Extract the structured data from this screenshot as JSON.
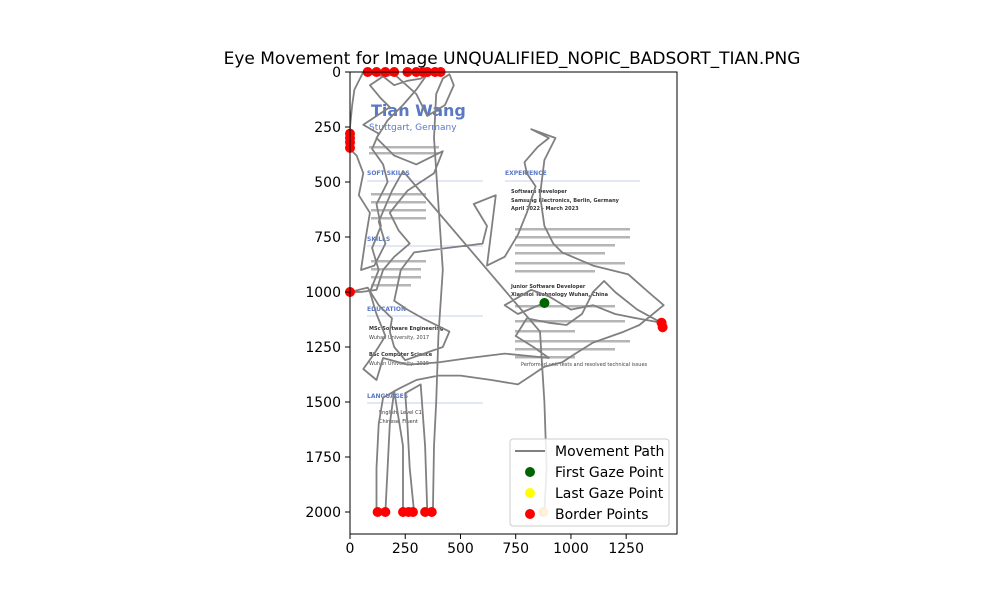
{
  "chart_data": {
    "type": "scatter",
    "title": "Eye Movement for Image UNQUALIFIED_NOPIC_BADSORT_TIAN.PNG",
    "xlabel": "",
    "ylabel": "",
    "xlim": [
      0,
      1480
    ],
    "ylim": [
      2100,
      0
    ],
    "y_inverted": true,
    "x_ticks": [
      0,
      250,
      500,
      750,
      1000,
      1250
    ],
    "y_ticks": [
      0,
      250,
      500,
      750,
      1000,
      1250,
      1500,
      1750,
      2000
    ],
    "grid": false,
    "legend_position": "lower-right",
    "legend": [
      "Movement Path",
      "First Gaze Point",
      "Last Gaze Point",
      "Border Points"
    ],
    "colors": {
      "path": "#808080",
      "first_gaze": "#006400",
      "last_gaze": "#ffff00",
      "border": "#ff0000",
      "resume_accent": "#5a78c8"
    },
    "series": [
      {
        "name": "Movement Path",
        "kind": "line",
        "points": [
          [
            880,
            1050
          ],
          [
            760,
            1100
          ],
          [
            700,
            1060
          ],
          [
            820,
            990
          ],
          [
            900,
            1020
          ],
          [
            1000,
            1080
          ],
          [
            1100,
            1060
          ],
          [
            1200,
            1100
          ],
          [
            1300,
            1120
          ],
          [
            1410,
            1140
          ],
          [
            1300,
            1080
          ],
          [
            1200,
            1000
          ],
          [
            1150,
            950
          ],
          [
            1100,
            1000
          ],
          [
            1050,
            1100
          ],
          [
            980,
            1150
          ],
          [
            900,
            1140
          ],
          [
            800,
            1120
          ],
          [
            750,
            1200
          ],
          [
            830,
            1250
          ],
          [
            900,
            1300
          ],
          [
            700,
            1280
          ],
          [
            540,
            1300
          ],
          [
            400,
            1320
          ],
          [
            260,
            1330
          ],
          [
            150,
            1300
          ],
          [
            120,
            1400
          ],
          [
            60,
            1350
          ],
          [
            110,
            1280
          ],
          [
            160,
            1200
          ],
          [
            120,
            1100
          ],
          [
            90,
            1000
          ],
          [
            130,
            900
          ],
          [
            100,
            800
          ],
          [
            140,
            700
          ],
          [
            120,
            600
          ],
          [
            170,
            500
          ],
          [
            150,
            420
          ],
          [
            100,
            350
          ],
          [
            130,
            280
          ],
          [
            60,
            240
          ],
          [
            120,
            200
          ],
          [
            180,
            160
          ],
          [
            140,
            120
          ],
          [
            90,
            60
          ],
          [
            150,
            20
          ],
          [
            200,
            60
          ],
          [
            260,
            40
          ],
          [
            320,
            30
          ],
          [
            350,
            10
          ],
          [
            300,
            80
          ],
          [
            240,
            150
          ],
          [
            170,
            220
          ],
          [
            120,
            300
          ],
          [
            200,
            380
          ],
          [
            300,
            420
          ],
          [
            420,
            360
          ],
          [
            380,
            460
          ],
          [
            260,
            540
          ],
          [
            180,
            640
          ],
          [
            220,
            720
          ],
          [
            270,
            780
          ],
          [
            200,
            840
          ],
          [
            150,
            900
          ],
          [
            120,
            990
          ],
          [
            50,
            1000
          ],
          [
            0,
            1000
          ],
          [
            80,
            980
          ],
          [
            130,
            1060
          ],
          [
            190,
            1120
          ],
          [
            180,
            1180
          ],
          [
            200,
            1250
          ],
          [
            250,
            1310
          ],
          [
            420,
            1250
          ],
          [
            450,
            1180
          ],
          [
            330,
            1120
          ],
          [
            260,
            1080
          ],
          [
            200,
            1040
          ],
          [
            230,
            900
          ],
          [
            290,
            820
          ],
          [
            440,
            800
          ],
          [
            600,
            780
          ],
          [
            620,
            700
          ],
          [
            560,
            600
          ],
          [
            660,
            560
          ],
          [
            620,
            880
          ],
          [
            700,
            840
          ],
          [
            760,
            740
          ],
          [
            800,
            640
          ],
          [
            840,
            520
          ],
          [
            800,
            460
          ],
          [
            790,
            410
          ],
          [
            850,
            340
          ],
          [
            900,
            300
          ],
          [
            820,
            260
          ],
          [
            930,
            300
          ],
          [
            880,
            400
          ],
          [
            860,
            560
          ],
          [
            880,
            700
          ],
          [
            920,
            780
          ],
          [
            960,
            820
          ],
          [
            1100,
            880
          ],
          [
            1260,
            920
          ],
          [
            1350,
            1000
          ],
          [
            1420,
            1060
          ],
          [
            1310,
            1150
          ],
          [
            1240,
            1180
          ],
          [
            1100,
            1230
          ],
          [
            1020,
            1280
          ],
          [
            960,
            1320
          ],
          [
            880,
            1340
          ],
          [
            820,
            1380
          ],
          [
            760,
            1420
          ],
          [
            640,
            1400
          ],
          [
            500,
            1380
          ],
          [
            400,
            1380
          ],
          [
            300,
            1400
          ],
          [
            220,
            1440
          ],
          [
            150,
            1480
          ],
          [
            130,
            1600
          ],
          [
            120,
            1800
          ],
          [
            120,
            2000
          ],
          [
            160,
            2000
          ],
          [
            170,
            1800
          ],
          [
            180,
            1600
          ],
          [
            200,
            1450
          ],
          [
            240,
            1700
          ],
          [
            240,
            2000
          ],
          [
            290,
            2000
          ],
          [
            270,
            1800
          ],
          [
            260,
            1600
          ],
          [
            250,
            1460
          ],
          [
            320,
            1420
          ],
          [
            340,
            1700
          ],
          [
            350,
            2000
          ],
          [
            375,
            2000
          ],
          [
            380,
            1700
          ],
          [
            390,
            1500
          ],
          [
            400,
            1200
          ],
          [
            420,
            900
          ],
          [
            400,
            600
          ],
          [
            380,
            300
          ],
          [
            390,
            100
          ],
          [
            420,
            30
          ],
          [
            450,
            10
          ],
          [
            470,
            60
          ],
          [
            430,
            150
          ],
          [
            350,
            200
          ],
          [
            300,
            100
          ],
          [
            200,
            10
          ],
          [
            160,
            20
          ],
          [
            100,
            10
          ],
          [
            70,
            5
          ],
          [
            60,
            0
          ],
          [
            20,
            80
          ],
          [
            10,
            150
          ],
          [
            0,
            250
          ],
          [
            0,
            300
          ],
          [
            0,
            350
          ],
          [
            30,
            380
          ],
          [
            60,
            460
          ],
          [
            40,
            560
          ],
          [
            90,
            640
          ],
          [
            70,
            760
          ],
          [
            50,
            900
          ],
          [
            110,
            880
          ],
          [
            160,
            780
          ],
          [
            130,
            680
          ],
          [
            190,
            540
          ],
          [
            240,
            450
          ],
          [
            860,
            1180
          ],
          [
            880,
            1500
          ],
          [
            890,
            1800
          ],
          [
            880,
            2000
          ],
          [
            870,
            2000
          ]
        ]
      }
    ],
    "first_gaze_point": [
      880,
      1050
    ],
    "last_gaze_point": [
      875,
      2000
    ],
    "border_points": [
      [
        80,
        0
      ],
      [
        120,
        0
      ],
      [
        160,
        0
      ],
      [
        200,
        0
      ],
      [
        260,
        0
      ],
      [
        300,
        0
      ],
      [
        330,
        0
      ],
      [
        350,
        0
      ],
      [
        385,
        0
      ],
      [
        410,
        0
      ],
      [
        0,
        280
      ],
      [
        0,
        300
      ],
      [
        0,
        320
      ],
      [
        0,
        345
      ],
      [
        0,
        1000
      ],
      [
        125,
        2000
      ],
      [
        160,
        2000
      ],
      [
        240,
        2000
      ],
      [
        265,
        2000
      ],
      [
        285,
        2000
      ],
      [
        340,
        2000
      ],
      [
        370,
        2000
      ],
      [
        875,
        2000
      ],
      [
        1410,
        1140
      ],
      [
        1415,
        1160
      ]
    ],
    "background_document": {
      "name": "Tian Wang",
      "location": "Stuttgart, Germany",
      "sections": [
        "SOFT SKILLS",
        "SKILLS",
        "EDUCATION",
        "LANGUAGES",
        "EXPERIENCE"
      ],
      "lines": [
        "Software Developer",
        "Samsung Electronics, Berlin, Germany",
        "April 2022 - March 2023",
        "Junior Software Developer",
        "Xiaomoi Technology Wuhan, China",
        "MSc Software Engineering",
        "Wuhan University, 2017",
        "BSc Computer Science",
        "Wuhan University, 2015",
        "English: Level C1",
        "Chinese: Fluent",
        "Performed unit tests and resolved technical issues"
      ]
    }
  }
}
